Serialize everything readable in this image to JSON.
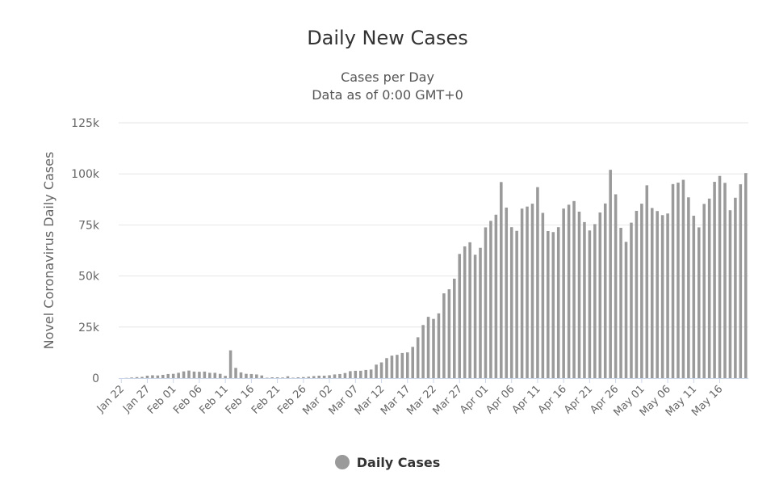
{
  "chart_data": {
    "type": "bar",
    "title": "Daily New Cases",
    "subtitle_lines": [
      "Cases per Day",
      "Data as of 0:00 GMT+0"
    ],
    "ylabel": "Novel Coronavirus Daily Cases",
    "xlabel": "",
    "ylim": [
      0,
      125000
    ],
    "yticks": [
      0,
      25000,
      50000,
      75000,
      100000,
      125000
    ],
    "ytick_labels": [
      "0",
      "25k",
      "50k",
      "75k",
      "100k",
      "125k"
    ],
    "xtick_labels": [
      "Jan 22",
      "Jan 27",
      "Feb 01",
      "Feb 06",
      "Feb 11",
      "Feb 16",
      "Feb 21",
      "Feb 26",
      "Mar 02",
      "Mar 07",
      "Mar 12",
      "Mar 17",
      "Mar 22",
      "Mar 27",
      "Apr 01",
      "Apr 06",
      "Apr 11",
      "Apr 16",
      "Apr 21",
      "Apr 26",
      "May 01",
      "May 06",
      "May 11",
      "May 16"
    ],
    "xtick_every": 5,
    "grid": true,
    "legend_position": "bottom-center",
    "series": [
      {
        "name": "Daily Cases",
        "color": "#9a9a9a",
        "values": [
          0,
          100,
          300,
          500,
          600,
          1200,
          1400,
          1300,
          1600,
          2000,
          2100,
          2600,
          3300,
          3700,
          3200,
          3100,
          3200,
          2600,
          2600,
          2100,
          1100,
          13600,
          5000,
          2800,
          2100,
          2000,
          1800,
          1300,
          200,
          400,
          400,
          300,
          900,
          200,
          400,
          500,
          700,
          1000,
          1200,
          1200,
          1400,
          1800,
          2000,
          2500,
          3400,
          3600,
          3600,
          4000,
          4200,
          6600,
          7700,
          9800,
          11000,
          11400,
          12300,
          12600,
          15300,
          20000,
          26000,
          30000,
          29000,
          31700,
          41500,
          43500,
          48700,
          60800,
          64500,
          66500,
          60400,
          63800,
          73800,
          77000,
          80000,
          96000,
          83500,
          73900,
          72100,
          83000,
          84000,
          85400,
          93500,
          80900,
          72000,
          71500,
          73900,
          83000,
          84900,
          86700,
          81500,
          76400,
          72300,
          75400,
          81100,
          85500,
          102000,
          90000,
          73600,
          66700,
          76100,
          81900,
          85400,
          94400,
          83300,
          81800,
          79800,
          80600,
          95000,
          95700,
          97100,
          88500,
          79500,
          73800,
          85300,
          87900,
          96100,
          99000,
          95600,
          82200,
          88300,
          94900,
          100400
        ]
      }
    ]
  },
  "legend": {
    "label": "Daily Cases"
  }
}
